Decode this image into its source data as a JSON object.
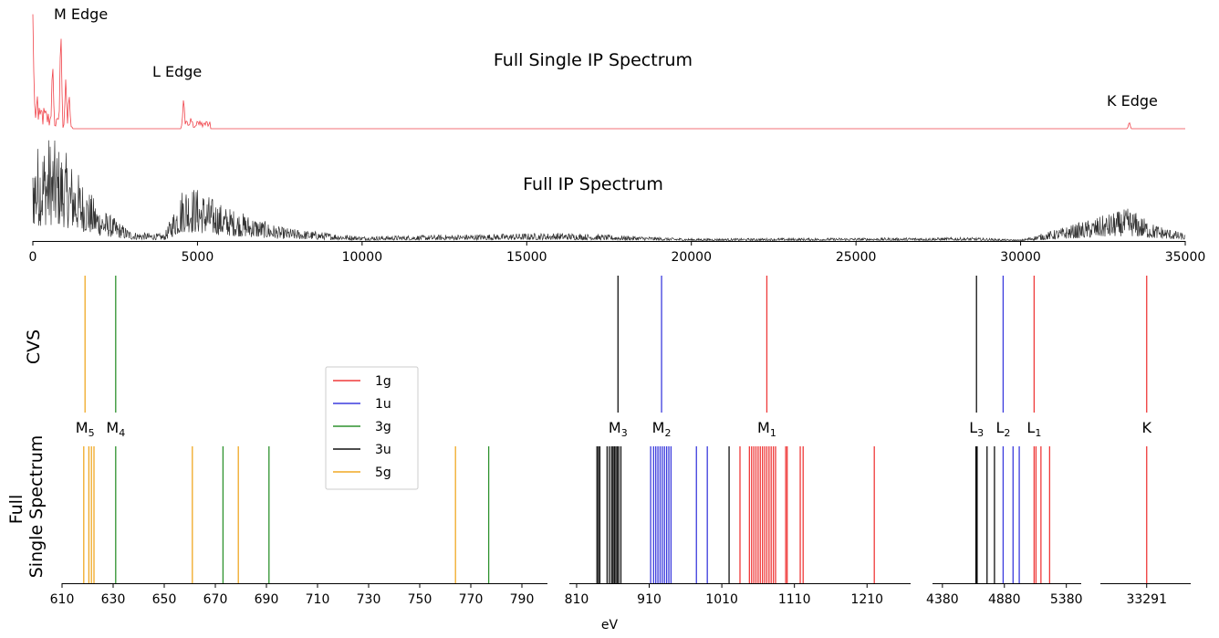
{
  "chart_data": [
    {
      "type": "line",
      "title": "Full Single IP Spectrum",
      "series": [
        {
          "color": "#f0444b"
        }
      ],
      "xlim": [
        0,
        35000
      ],
      "ylim": [
        0,
        1
      ],
      "peaks_x": [
        0,
        200,
        600,
        850,
        1000,
        1100,
        4580,
        4800,
        5000,
        5200,
        33300
      ],
      "peaks_y": [
        0.98,
        0.2,
        0.62,
        0.92,
        0.44,
        0.32,
        0.28,
        0.1,
        0.08,
        0.06,
        0.06
      ],
      "annotations": [
        "M Edge",
        "L Edge",
        "K Edge"
      ],
      "grid": false
    },
    {
      "type": "line",
      "title": "Full IP Spectrum",
      "series": [
        {
          "color": "#333333"
        }
      ],
      "xlim": [
        0,
        35000
      ],
      "ylim": [
        0,
        1
      ],
      "envelope_x": [
        0,
        500,
        1000,
        2000,
        3000,
        4000,
        4600,
        5000,
        5800,
        7500,
        8000,
        10000,
        16000,
        20000,
        28500,
        30000,
        33300,
        34000,
        35000
      ],
      "envelope_y": [
        0.8,
        0.9,
        0.75,
        0.3,
        0.08,
        0.06,
        0.5,
        0.45,
        0.3,
        0.12,
        0.1,
        0.04,
        0.07,
        0.02,
        0.03,
        0.01,
        0.28,
        0.15,
        0.06
      ],
      "xticks": [
        "0",
        "5000",
        "10000",
        "15000",
        "20000",
        "25000",
        "30000",
        "35000"
      ],
      "grid": false
    },
    {
      "type": "line",
      "ylabel": "CVS",
      "lines_by_group": [
        {
          "xlim": [
            610,
            800
          ],
          "lines": [
            {
              "x": 619,
              "c": "5g"
            },
            {
              "x": 631,
              "c": "3g"
            }
          ]
        },
        {
          "xlim": [
            800,
            1270
          ],
          "lines": [
            {
              "x": 867,
              "c": "3u"
            },
            {
              "x": 927,
              "c": "1u"
            },
            {
              "x": 1072,
              "c": "1g"
            }
          ]
        },
        {
          "xlim": [
            4300,
            5500
          ],
          "lines": [
            {
              "x": 4655,
              "c": "3u"
            },
            {
              "x": 4870,
              "c": "1u"
            },
            {
              "x": 5120,
              "c": "1g"
            }
          ]
        },
        {
          "xlim": [
            33250,
            33330
          ],
          "lines": [
            {
              "x": 33291,
              "c": "1g"
            }
          ]
        }
      ]
    },
    {
      "type": "line",
      "ylabel": "Full Single Spectrum",
      "xlabel": "eV",
      "edge_labels": [
        {
          "text": "M",
          "sub": "5",
          "x": 619,
          "g": 0
        },
        {
          "text": "M",
          "sub": "4",
          "x": 631,
          "g": 0
        },
        {
          "text": "M",
          "sub": "3",
          "x": 867,
          "g": 1
        },
        {
          "text": "M",
          "sub": "2",
          "x": 927,
          "g": 1
        },
        {
          "text": "M",
          "sub": "1",
          "x": 1072,
          "g": 1
        },
        {
          "text": "L",
          "sub": "3",
          "x": 4655,
          "g": 2
        },
        {
          "text": "L",
          "sub": "2",
          "x": 4870,
          "g": 2
        },
        {
          "text": "L",
          "sub": "1",
          "x": 5120,
          "g": 2
        },
        {
          "text": "K",
          "sub": "",
          "x": 33291,
          "g": 3
        }
      ],
      "groups": [
        {
          "xlim": [
            610,
            800
          ],
          "xticks": [
            610,
            630,
            650,
            670,
            690,
            710,
            730,
            750,
            770,
            790
          ],
          "lines": [
            {
              "x": 618.5,
              "c": "5g"
            },
            {
              "x": 620.5,
              "c": "5g"
            },
            {
              "x": 621.5,
              "c": "5g"
            },
            {
              "x": 622.5,
              "c": "5g"
            },
            {
              "x": 631,
              "c": "3g"
            },
            {
              "x": 661,
              "c": "5g"
            },
            {
              "x": 673,
              "c": "3g"
            },
            {
              "x": 679,
              "c": "5g"
            },
            {
              "x": 691,
              "c": "3g"
            },
            {
              "x": 764,
              "c": "5g"
            },
            {
              "x": 777,
              "c": "3g"
            }
          ]
        },
        {
          "xlim": [
            800,
            1270
          ],
          "xticks": [
            810,
            910,
            1010,
            1110,
            1210
          ],
          "lines": [
            {
              "x": 838,
              "c": "3u"
            },
            {
              "x": 840,
              "c": "3u"
            },
            {
              "x": 842,
              "c": "3u"
            },
            {
              "x": 852,
              "c": "3u"
            },
            {
              "x": 855,
              "c": "3u"
            },
            {
              "x": 858,
              "c": "3u"
            },
            {
              "x": 860,
              "c": "3u"
            },
            {
              "x": 862,
              "c": "3u"
            },
            {
              "x": 864,
              "c": "3u"
            },
            {
              "x": 866,
              "c": "3u"
            },
            {
              "x": 868,
              "c": "3u"
            },
            {
              "x": 871,
              "c": "3u"
            },
            {
              "x": 912,
              "c": "1u"
            },
            {
              "x": 916,
              "c": "1u"
            },
            {
              "x": 919,
              "c": "1u"
            },
            {
              "x": 922,
              "c": "1u"
            },
            {
              "x": 925,
              "c": "1u"
            },
            {
              "x": 928,
              "c": "1u"
            },
            {
              "x": 931,
              "c": "1u"
            },
            {
              "x": 934,
              "c": "1u"
            },
            {
              "x": 937,
              "c": "1u"
            },
            {
              "x": 940,
              "c": "1u"
            },
            {
              "x": 975,
              "c": "1u"
            },
            {
              "x": 990,
              "c": "1u"
            },
            {
              "x": 1020,
              "c": "3u"
            },
            {
              "x": 1035,
              "c": "1g"
            },
            {
              "x": 1048,
              "c": "1g"
            },
            {
              "x": 1051,
              "c": "1g"
            },
            {
              "x": 1054,
              "c": "1g"
            },
            {
              "x": 1057,
              "c": "1g"
            },
            {
              "x": 1060,
              "c": "1g"
            },
            {
              "x": 1063,
              "c": "1g"
            },
            {
              "x": 1066,
              "c": "1g"
            },
            {
              "x": 1069,
              "c": "1g"
            },
            {
              "x": 1072,
              "c": "1g"
            },
            {
              "x": 1075,
              "c": "1g"
            },
            {
              "x": 1078,
              "c": "1g"
            },
            {
              "x": 1081,
              "c": "1g"
            },
            {
              "x": 1084,
              "c": "1g"
            },
            {
              "x": 1098,
              "c": "1g"
            },
            {
              "x": 1100,
              "c": "1g"
            },
            {
              "x": 1118,
              "c": "1g"
            },
            {
              "x": 1122,
              "c": "1g"
            },
            {
              "x": 1220,
              "c": "1g"
            }
          ]
        },
        {
          "xlim": [
            4300,
            5500
          ],
          "xticks": [
            4380,
            4880,
            5380
          ],
          "lines": [
            {
              "x": 4650,
              "c": "3u"
            },
            {
              "x": 4655,
              "c": "3u"
            },
            {
              "x": 4660,
              "c": "3u"
            },
            {
              "x": 4740,
              "c": "3u"
            },
            {
              "x": 4800,
              "c": "3u"
            },
            {
              "x": 4870,
              "c": "1u"
            },
            {
              "x": 4950,
              "c": "1u"
            },
            {
              "x": 5000,
              "c": "1u"
            },
            {
              "x": 5120,
              "c": "1g"
            },
            {
              "x": 5135,
              "c": "1g"
            },
            {
              "x": 5175,
              "c": "1g"
            },
            {
              "x": 5245,
              "c": "1g"
            }
          ]
        },
        {
          "xlim": [
            33250,
            33330
          ],
          "xticks": [
            33291
          ],
          "lines": [
            {
              "x": 33291,
              "c": "1g"
            }
          ]
        }
      ],
      "legend": {
        "position": "upper-left",
        "entries": [
          {
            "name": "1g",
            "color": "#ef3a3a"
          },
          {
            "name": "1u",
            "color": "#3b3bdd"
          },
          {
            "name": "3g",
            "color": "#2e922e"
          },
          {
            "name": "3u",
            "color": "#111111"
          },
          {
            "name": "5g",
            "color": "#f0a824"
          }
        ]
      }
    }
  ]
}
